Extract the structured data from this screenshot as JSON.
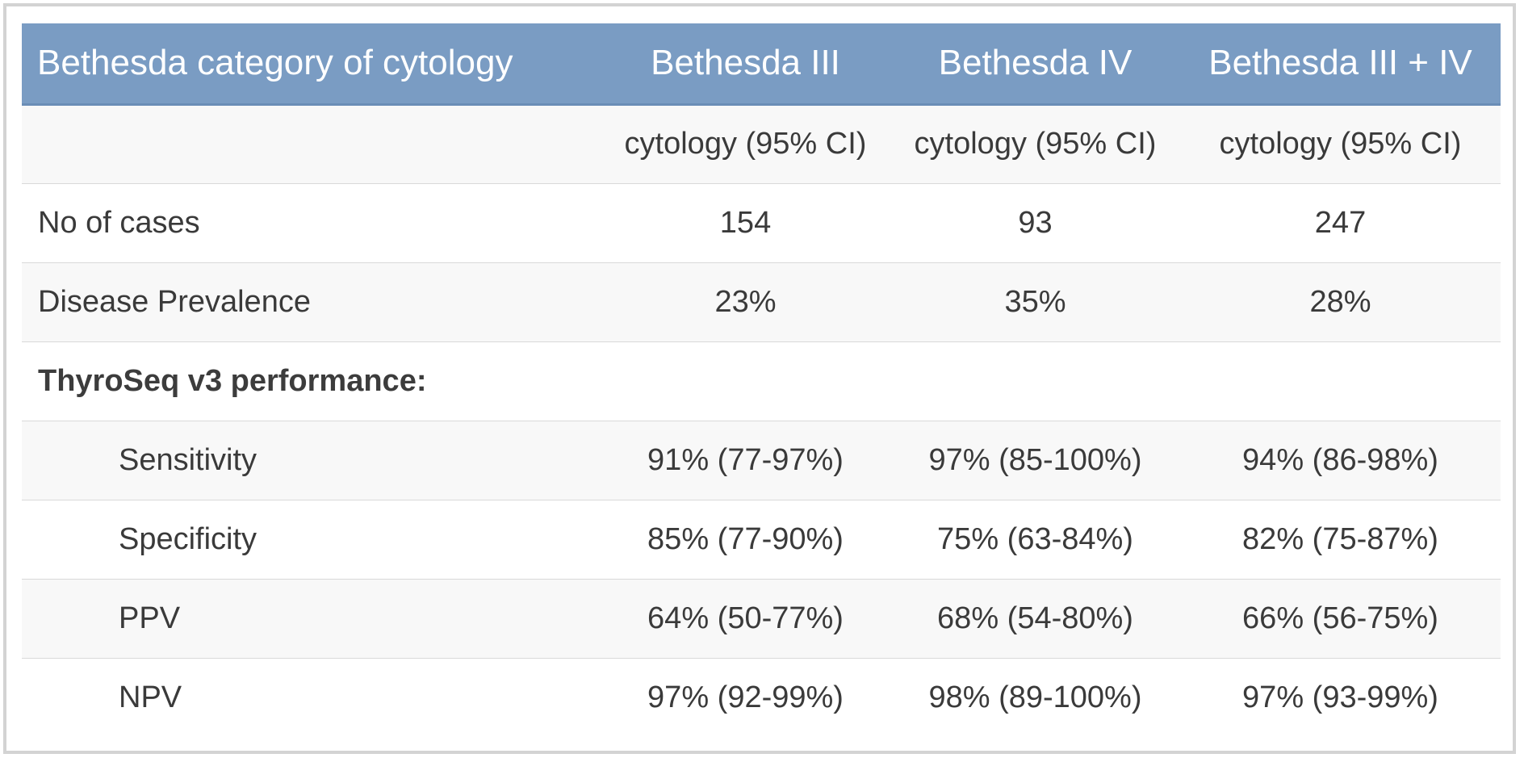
{
  "table": {
    "header": {
      "label": "Bethesda category of cytology",
      "columns": [
        "Bethesda III",
        "Bethesda IV",
        "Bethesda III + IV"
      ]
    },
    "subheader": {
      "label": "",
      "columns": [
        "cytology (95% CI)",
        "cytology (95% CI)",
        "cytology (95% CI)"
      ]
    },
    "rows": [
      {
        "label": "No of cases",
        "values": [
          "154",
          "93",
          "247"
        ]
      },
      {
        "label": "Disease Prevalence",
        "values": [
          "23%",
          "35%",
          "28%"
        ]
      }
    ],
    "section_title": "ThyroSeq v3 performance:",
    "metrics": [
      {
        "label": "Sensitivity",
        "values": [
          "91% (77-97%)",
          "97% (85-100%)",
          "94% (86-98%)"
        ]
      },
      {
        "label": "Specificity",
        "values": [
          "85% (77-90%)",
          "75% (63-84%)",
          "82% (75-87%)"
        ]
      },
      {
        "label": "PPV",
        "values": [
          "64% (50-77%)",
          "68% (54-80%)",
          "66% (56-75%)"
        ]
      },
      {
        "label": "NPV",
        "values": [
          "97% (92-99%)",
          "98% (89-100%)",
          "97% (93-99%)"
        ]
      }
    ]
  },
  "colors": {
    "header_background": "#7a9cc3",
    "header_text": "#ffffff",
    "body_text": "#3a3a3a",
    "shaded_row": "#f8f8f8",
    "frame_border": "#d3d3d3"
  }
}
